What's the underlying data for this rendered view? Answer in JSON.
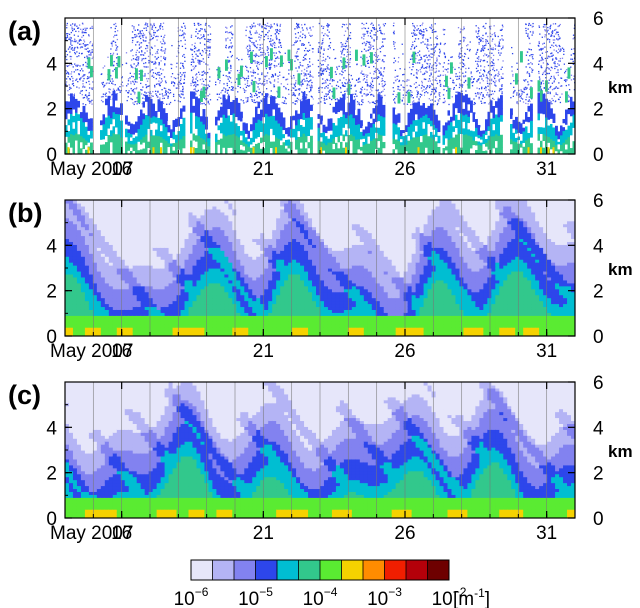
{
  "chart_data": {
    "type": "heatmap",
    "panels": [
      {
        "label": "(a)",
        "y_ticks": [
          "0",
          "2",
          "4"
        ],
        "y_ticks_right": [
          "0",
          "2",
          "4",
          "6"
        ],
        "y_unit": "km",
        "ylim": [
          0,
          6
        ],
        "x_start_label": "May 2007",
        "x_ticks": [
          "16",
          "21",
          "26",
          "31"
        ],
        "x_tick_days": [
          16,
          21,
          26,
          31
        ],
        "xlim_days": [
          14,
          32
        ],
        "style": "sparse"
      },
      {
        "label": "(b)",
        "y_ticks": [
          "0",
          "2",
          "4"
        ],
        "y_ticks_right": [
          "0",
          "2",
          "4",
          "6"
        ],
        "y_unit": "km",
        "ylim": [
          0,
          6
        ],
        "x_start_label": "May 2007",
        "x_ticks": [
          "16",
          "21",
          "26",
          "31"
        ],
        "x_tick_days": [
          16,
          21,
          26,
          31
        ],
        "xlim_days": [
          14,
          32
        ],
        "style": "smooth"
      },
      {
        "label": "(c)",
        "y_ticks": [
          "0",
          "2",
          "4"
        ],
        "y_ticks_right": [
          "0",
          "2",
          "4",
          "6"
        ],
        "y_unit": "km",
        "ylim": [
          0,
          6
        ],
        "x_start_label": "May 2007",
        "x_ticks": [
          "16",
          "21",
          "26",
          "31"
        ],
        "x_tick_days": [
          16,
          21,
          26,
          31
        ],
        "xlim_days": [
          14,
          32
        ],
        "style": "smooth"
      }
    ],
    "colorbar": {
      "unit": "[m-1]",
      "unit_base": "[m",
      "unit_exp": "-1",
      "unit_close": "]",
      "labels": [
        {
          "base": "10",
          "exp": "−6"
        },
        {
          "base": "10",
          "exp": "−5"
        },
        {
          "base": "10",
          "exp": "−4"
        },
        {
          "base": "10",
          "exp": "−3"
        },
        {
          "base": "10",
          "exp": "−2"
        }
      ],
      "colors": [
        "#e6e6fa",
        "#b4b4f5",
        "#8282f0",
        "#2d46eb",
        "#00bed2",
        "#32c88c",
        "#5aeb32",
        "#f5d200",
        "#ff8c00",
        "#f01e00",
        "#b4000a",
        "#6e0000"
      ]
    }
  }
}
